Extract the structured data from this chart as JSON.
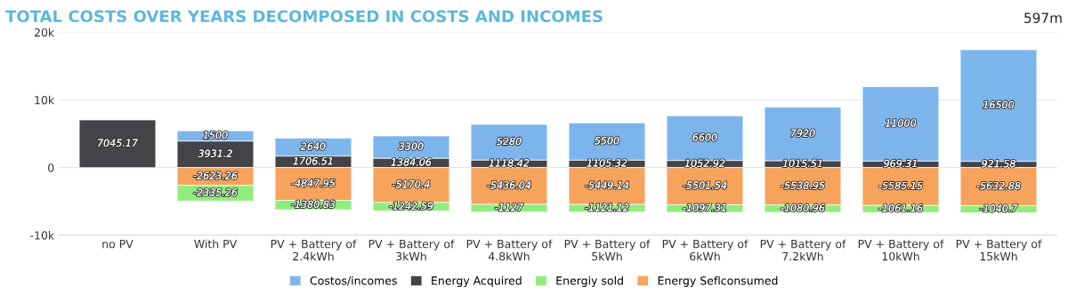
{
  "chart_data": {
    "type": "bar",
    "stacked": true,
    "title": "TOTAL COSTS OVER YEARS DECOMPOSED IN COSTS AND INCOMES",
    "annotations": [
      "597m"
    ],
    "categories": [
      "no PV",
      "With PV",
      "PV + Battery of\n2.4kWh",
      "PV + Battery of\n3kWh",
      "PV + Battery of\n4.8kWh",
      "PV + Battery of\n5kWh",
      "PV + Battery of\n6kWh",
      "PV + Battery of\n7.2kWh",
      "PV + Battery of\n10kWh",
      "PV + Battery of\n15kWh"
    ],
    "series": [
      {
        "name": "Energy Acquired",
        "color": "#434348",
        "values": [
          7045.17,
          3931.2,
          1706.51,
          1384.06,
          1118.42,
          1105.32,
          1052.92,
          1015.51,
          969.31,
          921.58
        ]
      },
      {
        "name": "Costos/incomes",
        "color": "#7cb5ec",
        "values": [
          null,
          1500,
          2640,
          3300,
          5280,
          5500,
          6600,
          7920,
          11000,
          16500
        ]
      },
      {
        "name": "Energy Seflconsumed",
        "color": "#f7a35c",
        "values": [
          null,
          -2623.26,
          -4847.95,
          -5170.4,
          -5436.04,
          -5449.14,
          -5501.54,
          -5538.95,
          -5585.15,
          -5632.88
        ]
      },
      {
        "name": "Energiy sold",
        "color": "#90ed7d",
        "values": [
          null,
          -2335.26,
          -1380.83,
          -1242.59,
          -1127,
          -1121.12,
          -1097.31,
          -1080.96,
          -1061.16,
          -1040.7
        ]
      }
    ],
    "ylim": [
      -10000,
      20000
    ],
    "yticks": [
      {
        "value": -10000,
        "label": "-10k"
      },
      0,
      {
        "value": 10000,
        "label": "10k"
      },
      {
        "value": 20000,
        "label": "20k"
      }
    ],
    "grid": "y",
    "legend": "bottom",
    "data_labels": true
  }
}
